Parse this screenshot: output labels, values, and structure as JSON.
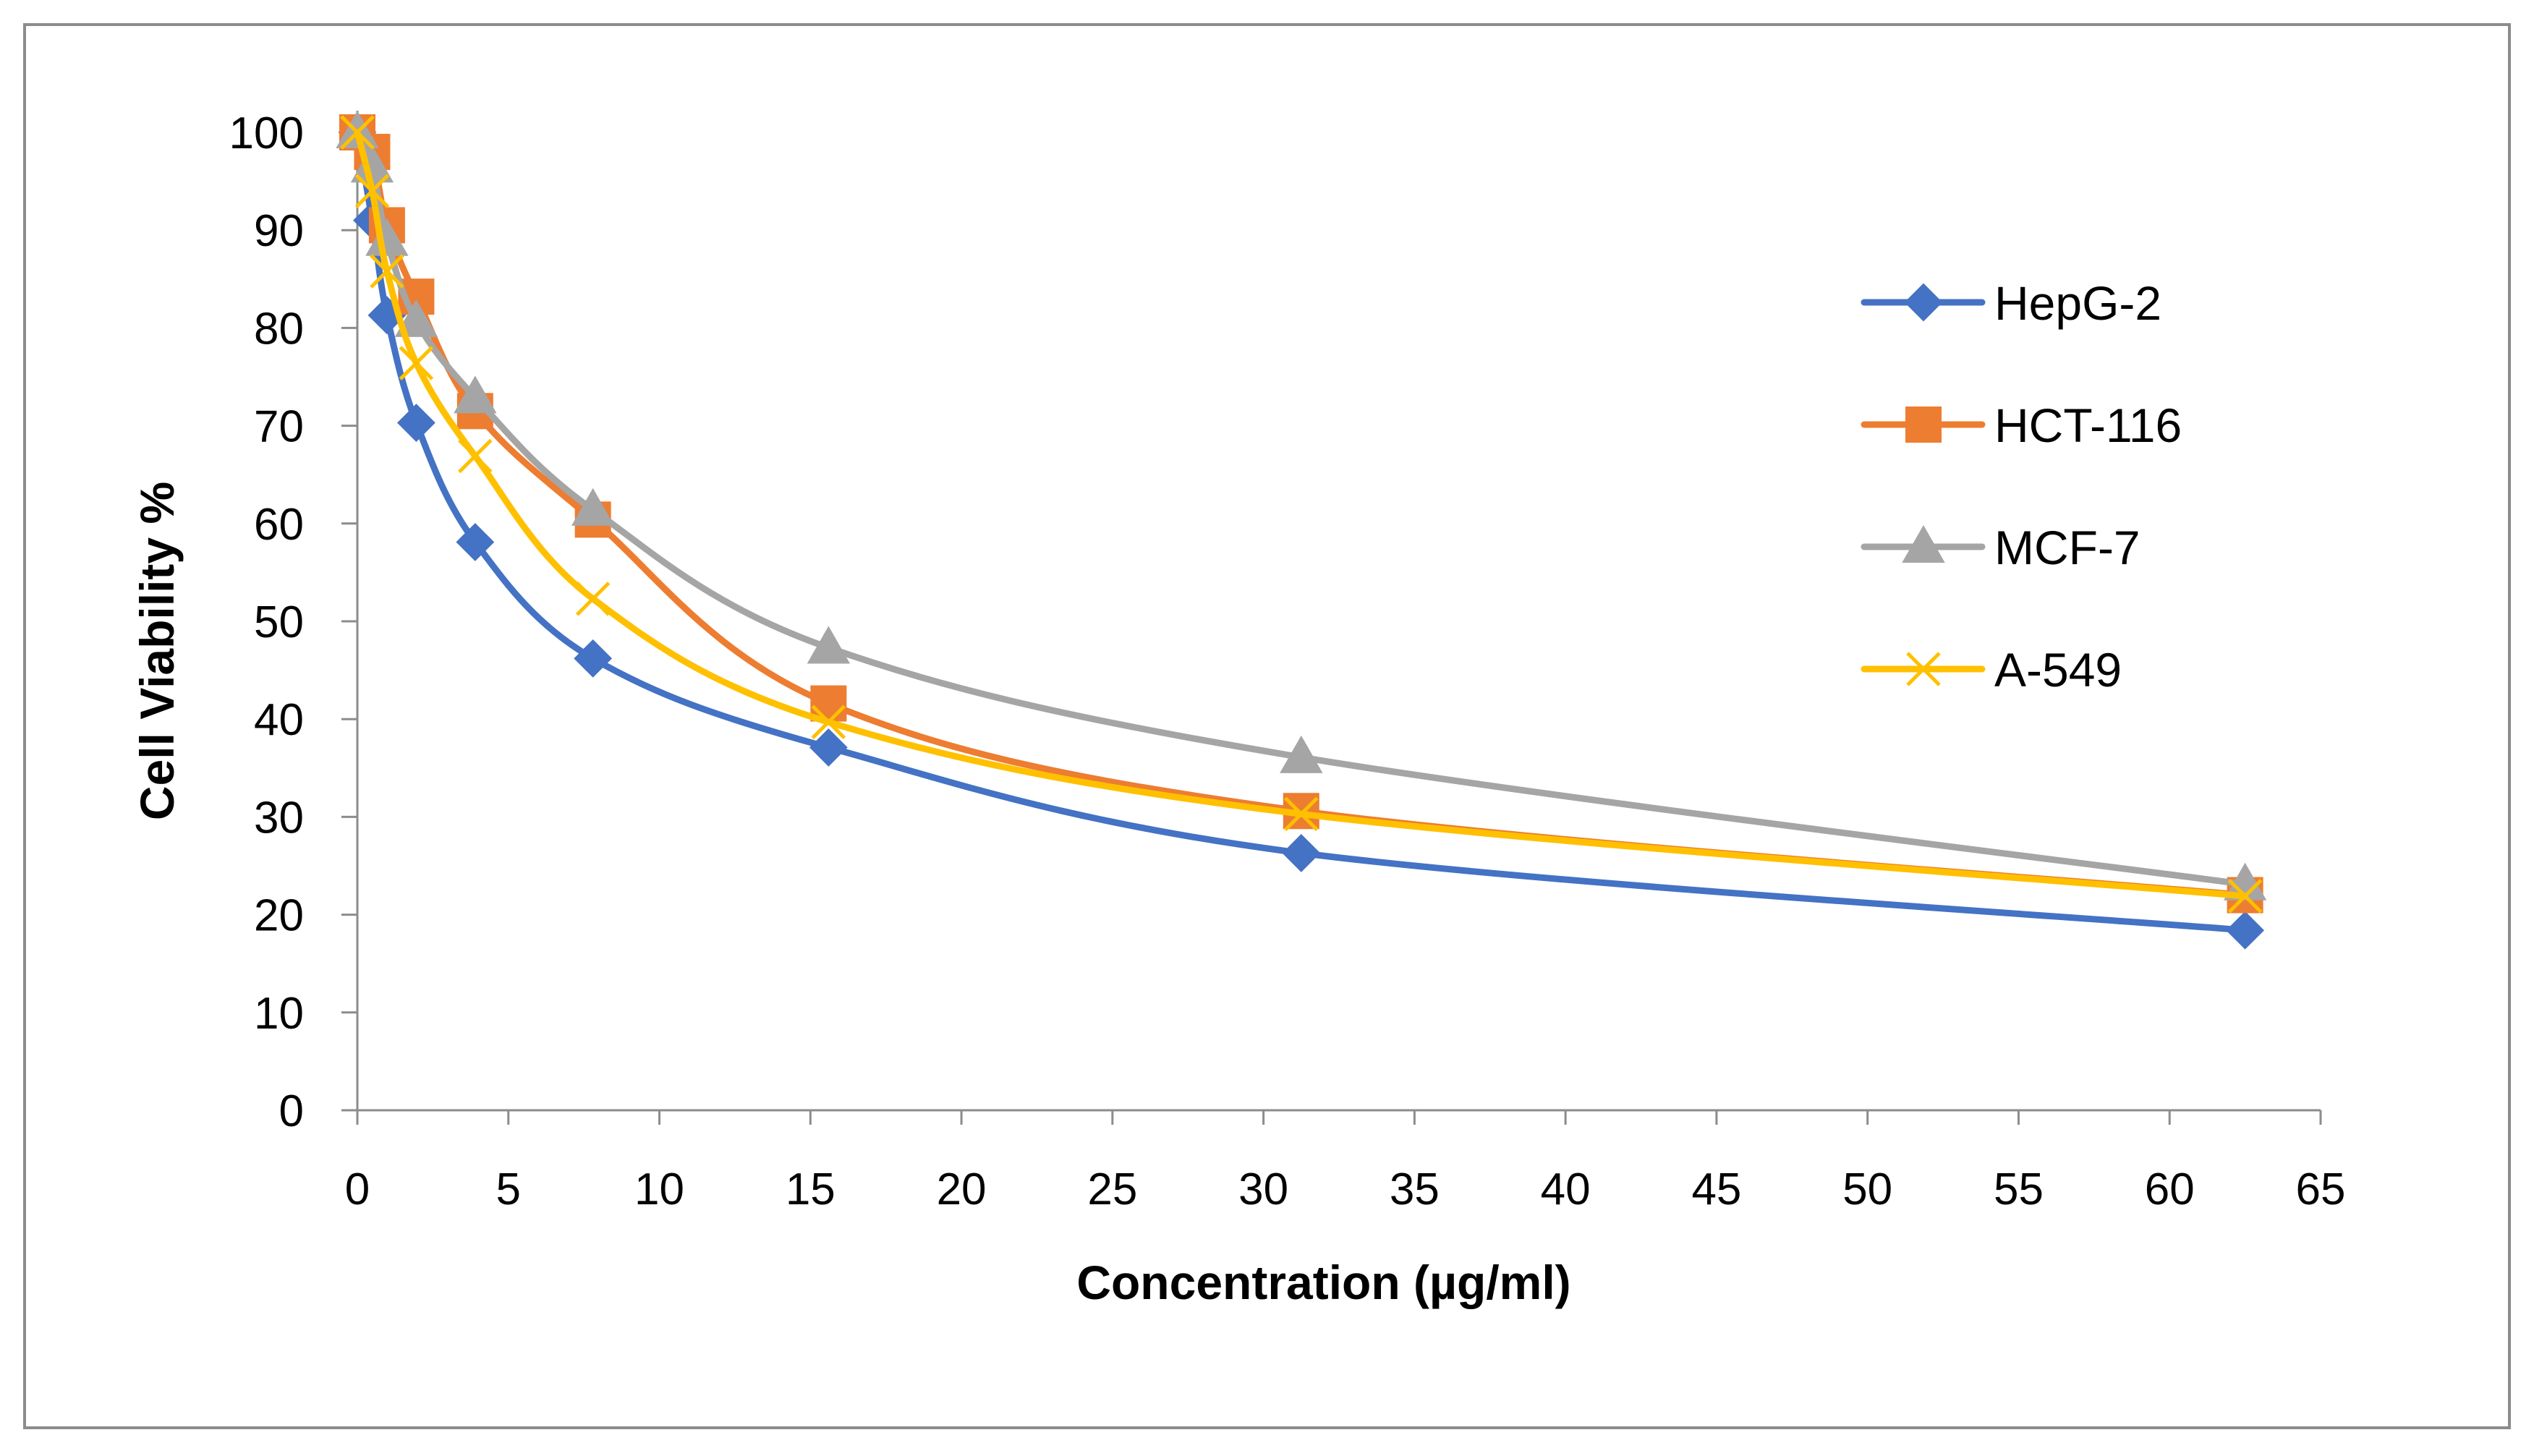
{
  "chart_data": {
    "type": "line",
    "title": "",
    "xlabel": "Concentration (µg/ml)",
    "ylabel": "Cell  Viability  %",
    "xlim": [
      0,
      65
    ],
    "ylim": [
      0,
      100
    ],
    "xticks": [
      0,
      5,
      10,
      15,
      20,
      25,
      30,
      35,
      40,
      45,
      50,
      55,
      60,
      65
    ],
    "yticks": [
      0,
      10,
      20,
      30,
      40,
      50,
      60,
      70,
      80,
      90,
      100
    ],
    "grid": false,
    "legend_position": "right",
    "x": [
      0,
      0.49,
      0.98,
      1.95,
      3.9,
      7.8,
      15.6,
      31.25,
      62.5
    ],
    "series": [
      {
        "name": "HepG-2",
        "color": "#4472C4",
        "marker": "diamond",
        "values": [
          100,
          91,
          81.3,
          70.3,
          58.1,
          46.2,
          37.1,
          26.3,
          18.4
        ]
      },
      {
        "name": "HCT-116",
        "color": "#ED7D31",
        "marker": "square",
        "values": [
          100,
          98,
          90.5,
          83.2,
          71.5,
          60.4,
          41.6,
          30.6,
          22
        ]
      },
      {
        "name": "MCF-7",
        "color": "#A5A5A5",
        "marker": "triangle",
        "values": [
          100,
          96.5,
          89,
          80.7,
          72.9,
          61.4,
          47.3,
          36.1,
          23.1
        ]
      },
      {
        "name": "A-549",
        "color": "#FFC000",
        "marker": "x",
        "values": [
          100,
          94,
          85.8,
          76.4,
          66.9,
          52.3,
          39.7,
          30.3,
          21.9
        ]
      }
    ]
  }
}
